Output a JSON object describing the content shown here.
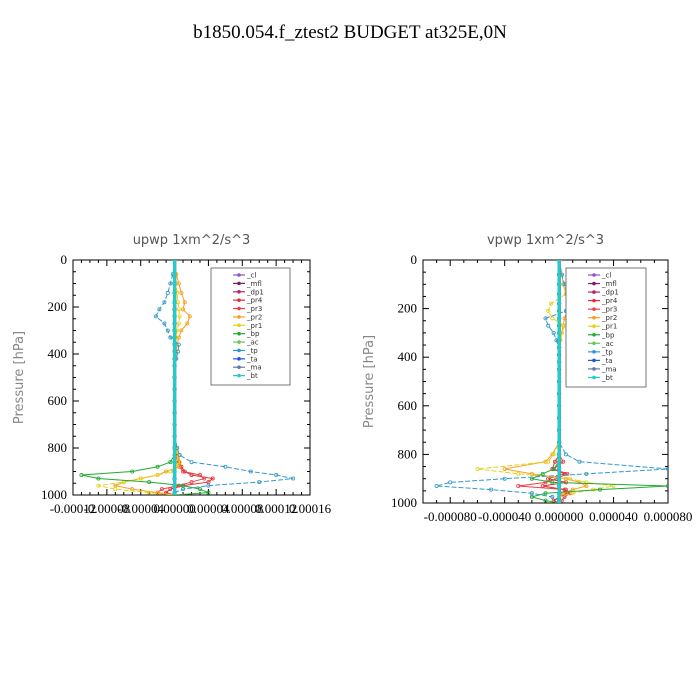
{
  "title": "b1850.054.f_ztest2  BUDGET at325E,0N",
  "chart_data": [
    {
      "type": "line",
      "title": "upwp   1xm^2/s^3",
      "xlabel": "",
      "ylabel": "Pressure [hPa]",
      "xlim": [
        -0.00012,
        0.00016
      ],
      "ylim": [
        1000,
        0
      ],
      "x_tick_labels": [
        "-0.00012",
        "-0.00008",
        "-0.00004",
        "0.00000",
        "0.00004",
        "0.00008",
        "0.00012",
        "0.00016"
      ],
      "y_tick_labels": [
        "0",
        "200",
        "400",
        "600",
        "800",
        "1000"
      ],
      "legend_position": "top-right",
      "pressure": [
        0,
        60,
        100,
        140,
        180,
        210,
        240,
        270,
        300,
        330,
        360,
        390,
        420,
        450,
        500,
        550,
        600,
        650,
        700,
        750,
        800,
        830,
        860,
        880,
        900,
        915,
        930,
        945,
        960,
        975,
        990,
        1000
      ],
      "series": [
        {
          "name": "_cl",
          "color": "#8855cc",
          "values": [
            0,
            0,
            0,
            0,
            0,
            0,
            0,
            0,
            0,
            0,
            0,
            0,
            0,
            0,
            0,
            0,
            0,
            0,
            0,
            0,
            0,
            0,
            0,
            0,
            0,
            0,
            0,
            0,
            0,
            0,
            0,
            0
          ]
        },
        {
          "name": "_mfl",
          "color": "#7a1d6b",
          "values": [
            0,
            0,
            0,
            0,
            0,
            0,
            0,
            0,
            0,
            0,
            0,
            0,
            0,
            0,
            0,
            0,
            0,
            0,
            0,
            0,
            0,
            0,
            0,
            0,
            0,
            0,
            0,
            0,
            0,
            0,
            0,
            0
          ]
        },
        {
          "name": "_dp1",
          "color": "#b02a6a",
          "values": [
            0,
            0,
            0,
            0,
            0,
            0,
            0,
            0,
            0,
            0,
            0,
            0,
            0,
            0,
            0,
            0,
            0,
            0,
            0,
            0,
            0,
            0,
            0,
            0,
            0,
            0,
            0,
            0,
            0,
            0,
            0,
            0
          ]
        },
        {
          "name": "_pr4",
          "color": "#e03030",
          "values": [
            0,
            0,
            0,
            0,
            0,
            0,
            0,
            0,
            0,
            0,
            0,
            0,
            0,
            0,
            0,
            0,
            0,
            0,
            0,
            0,
            0,
            3e-06,
            5e-06,
            8e-06,
            1.2e-05,
            2e-05,
            4.5e-05,
            4e-05,
            1e-05,
            -5e-06,
            -1e-05,
            0
          ]
        },
        {
          "name": "_pr3",
          "color": "#e8404a",
          "values": [
            0,
            0,
            0,
            0,
            0,
            0,
            0,
            0,
            0,
            0,
            0,
            0,
            0,
            0,
            0,
            0,
            0,
            0,
            0,
            0,
            0,
            2e-06,
            4e-06,
            6e-06,
            1e-05,
            3e-05,
            3.5e-05,
            2e-05,
            5e-06,
            -1.5e-05,
            -2e-05,
            0
          ]
        },
        {
          "name": "_pr2",
          "color": "#f5a020",
          "values": [
            0,
            2e-06,
            5e-06,
            8e-06,
            1.2e-05,
            1e-05,
            1.8e-05,
            1.5e-05,
            8e-06,
            5e-06,
            3e-06,
            2e-06,
            1e-06,
            0,
            0,
            0,
            0,
            0,
            0,
            0,
            3e-06,
            5e-06,
            6e-06,
            5e-06,
            -1e-05,
            -2e-05,
            -4e-05,
            -6e-05,
            -7e-05,
            -5e-05,
            -2e-05,
            0
          ]
        },
        {
          "name": "_pr1",
          "color": "#e6d21a",
          "values": [
            0,
            1e-06,
            2e-06,
            3e-06,
            4e-06,
            5e-06,
            6e-06,
            5e-06,
            3e-06,
            2e-06,
            1e-06,
            0,
            0,
            0,
            0,
            0,
            0,
            0,
            0,
            0,
            2e-06,
            3e-06,
            4e-06,
            3e-06,
            -5e-06,
            -2e-05,
            -4e-05,
            -6e-05,
            -9e-05,
            -7e-05,
            -3e-05,
            0
          ]
        },
        {
          "name": "_bp",
          "color": "#22aa33",
          "values": [
            0,
            0,
            0,
            0,
            0,
            0,
            0,
            0,
            0,
            0,
            0,
            0,
            0,
            0,
            0,
            0,
            0,
            0,
            0,
            0,
            0,
            0,
            -5e-06,
            -2e-05,
            -5e-05,
            -0.00011,
            -9e-05,
            -3e-05,
            1e-05,
            3e-05,
            4e-05,
            0
          ]
        },
        {
          "name": "_ac",
          "color": "#66cc55",
          "values": [
            0,
            0,
            0,
            0,
            0,
            0,
            0,
            0,
            0,
            0,
            0,
            0,
            0,
            0,
            0,
            0,
            0,
            0,
            0,
            0,
            0,
            0,
            0,
            0,
            0,
            0,
            0,
            0,
            0,
            0,
            0,
            0
          ]
        },
        {
          "name": "_tp",
          "color": "#3399cc",
          "values": [
            0,
            -2e-06,
            -5e-06,
            -8e-06,
            -1.2e-05,
            -1.8e-05,
            -2.2e-05,
            -1.2e-05,
            -8e-06,
            -5e-06,
            5e-06,
            4e-06,
            2e-06,
            0,
            0,
            0,
            0,
            0,
            0,
            0,
            3e-06,
            6e-06,
            2e-05,
            6e-05,
            9e-05,
            0.00012,
            0.00014,
            0.0001,
            4e-05,
            1e-05,
            0,
            0
          ]
        },
        {
          "name": "_ta",
          "color": "#2255dd",
          "values": [
            0,
            0,
            0,
            0,
            0,
            0,
            0,
            0,
            0,
            0,
            0,
            0,
            0,
            0,
            0,
            0,
            0,
            0,
            0,
            0,
            0,
            0,
            0,
            0,
            0,
            0,
            0,
            0,
            0,
            0,
            0,
            0
          ]
        },
        {
          "name": "_ma",
          "color": "#6677aa",
          "values": [
            0,
            0,
            0,
            0,
            0,
            0,
            0,
            0,
            0,
            0,
            0,
            0,
            0,
            0,
            0,
            0,
            0,
            0,
            0,
            0,
            0,
            0,
            0,
            0,
            0,
            0,
            0,
            0,
            0,
            0,
            0,
            0
          ]
        },
        {
          "name": "_bt",
          "color": "#22cccc",
          "values": [
            0,
            0,
            0,
            0,
            0,
            0,
            0,
            0,
            0,
            0,
            0,
            0,
            0,
            0,
            0,
            0,
            0,
            0,
            0,
            0,
            0,
            0,
            0,
            0,
            0,
            0,
            0,
            0,
            0,
            0,
            0,
            0
          ]
        }
      ]
    },
    {
      "type": "line",
      "title": "vpwp   1xm^2/s^3",
      "xlabel": "",
      "ylabel": "Pressure [hPa]",
      "xlim": [
        -0.0001,
        8e-05
      ],
      "ylim": [
        1000,
        0
      ],
      "x_tick_labels": [
        "-0.000080",
        "-0.000040",
        "0.000000",
        "0.000040",
        "0.000080"
      ],
      "y_tick_labels": [
        "0",
        "200",
        "400",
        "600",
        "800",
        "1000"
      ],
      "legend_position": "top-right",
      "pressure": [
        0,
        60,
        100,
        140,
        180,
        210,
        240,
        270,
        300,
        330,
        360,
        390,
        420,
        450,
        500,
        550,
        600,
        650,
        700,
        750,
        800,
        830,
        860,
        880,
        900,
        915,
        930,
        945,
        960,
        975,
        990,
        1000
      ],
      "series": [
        {
          "name": "_cl",
          "color": "#8855cc",
          "values": [
            0,
            0,
            0,
            0,
            0,
            0,
            0,
            0,
            0,
            0,
            0,
            0,
            0,
            0,
            0,
            0,
            0,
            0,
            0,
            0,
            0,
            0,
            0,
            0,
            0,
            0,
            0,
            0,
            0,
            0,
            0,
            0
          ]
        },
        {
          "name": "_mfl",
          "color": "#7a1d6b",
          "values": [
            0,
            0,
            0,
            0,
            0,
            0,
            0,
            0,
            0,
            0,
            0,
            0,
            0,
            0,
            0,
            0,
            0,
            0,
            0,
            0,
            0,
            0,
            0,
            0,
            0,
            0,
            0,
            0,
            0,
            0,
            0,
            0
          ]
        },
        {
          "name": "_dp1",
          "color": "#b02a6a",
          "values": [
            0,
            0,
            0,
            0,
            0,
            0,
            0,
            0,
            0,
            0,
            0,
            0,
            0,
            0,
            0,
            0,
            0,
            0,
            0,
            0,
            0,
            0,
            0,
            0,
            0,
            0,
            0,
            0,
            0,
            0,
            0,
            0
          ]
        },
        {
          "name": "_pr4",
          "color": "#e03030",
          "values": [
            0,
            0,
            0,
            0,
            0,
            0,
            0,
            0,
            0,
            0,
            0,
            0,
            0,
            0,
            0,
            0,
            0,
            0,
            0,
            0,
            0,
            -3e-06,
            -5e-06,
            4e-06,
            -8e-06,
            5e-06,
            -1.2e-05,
            4e-06,
            6e-06,
            0,
            -4e-06,
            0
          ]
        },
        {
          "name": "_pr3",
          "color": "#e8404a",
          "values": [
            0,
            0,
            0,
            0,
            0,
            0,
            0,
            0,
            0,
            0,
            0,
            0,
            0,
            0,
            0,
            0,
            0,
            0,
            0,
            0,
            0,
            3e-06,
            -4e-06,
            6e-06,
            -2e-06,
            -1e-05,
            -3e-05,
            5e-06,
            8e-06,
            4e-06,
            2e-06,
            0
          ]
        },
        {
          "name": "_pr2",
          "color": "#f5a020",
          "values": [
            0,
            2e-06,
            3e-06,
            5e-06,
            8e-06,
            6e-06,
            4e-06,
            3e-06,
            2e-06,
            1e-06,
            0,
            0,
            0,
            0,
            0,
            0,
            0,
            0,
            0,
            0,
            -5e-06,
            -1e-05,
            -4e-05,
            -2e-05,
            5e-06,
            1.5e-05,
            2e-05,
            1e-05,
            3e-06,
            0,
            0,
            0
          ]
        },
        {
          "name": "_pr1",
          "color": "#e6d21a",
          "values": [
            0,
            2e-06,
            3e-06,
            5e-06,
            -6e-06,
            -8e-06,
            -5e-06,
            4e-06,
            2e-06,
            1e-06,
            0,
            0,
            0,
            0,
            0,
            0,
            0,
            0,
            0,
            0,
            -4e-06,
            -8e-06,
            -6e-05,
            -3e-05,
            8e-06,
            2e-05,
            4e-05,
            2.5e-05,
            1e-05,
            0,
            0,
            0
          ]
        },
        {
          "name": "_bp",
          "color": "#22aa33",
          "values": [
            0,
            0,
            0,
            0,
            0,
            0,
            0,
            0,
            0,
            0,
            0,
            0,
            0,
            0,
            0,
            0,
            0,
            0,
            0,
            0,
            0,
            0,
            -4e-06,
            -1.2e-05,
            -2e-05,
            -5e-06,
            8e-05,
            3e-05,
            -1e-05,
            -2e-05,
            -1e-05,
            0
          ]
        },
        {
          "name": "_ac",
          "color": "#66cc55",
          "values": [
            0,
            0,
            0,
            0,
            0,
            0,
            0,
            0,
            0,
            0,
            0,
            0,
            0,
            0,
            0,
            0,
            0,
            0,
            0,
            0,
            0,
            0,
            0,
            0,
            0,
            0,
            0,
            0,
            0,
            0,
            0,
            0
          ]
        },
        {
          "name": "_tp",
          "color": "#3399cc",
          "values": [
            0,
            2e-06,
            4e-06,
            6e-06,
            1.2e-05,
            5e-06,
            -1e-05,
            -8e-06,
            -4e-06,
            -2e-06,
            0,
            0,
            0,
            0,
            0,
            0,
            0,
            0,
            0,
            0,
            5e-06,
            1.5e-05,
            8e-05,
            2e-05,
            -4e-05,
            -8e-05,
            -9e-05,
            -5e-05,
            -2e-05,
            -5e-06,
            0,
            0
          ]
        },
        {
          "name": "_ta",
          "color": "#2255dd",
          "values": [
            0,
            0,
            0,
            0,
            0,
            0,
            0,
            0,
            0,
            0,
            0,
            0,
            0,
            0,
            0,
            0,
            0,
            0,
            0,
            0,
            0,
            0,
            0,
            0,
            0,
            0,
            0,
            0,
            0,
            0,
            0,
            0
          ]
        },
        {
          "name": "_ma",
          "color": "#6677aa",
          "values": [
            0,
            0,
            0,
            0,
            0,
            0,
            0,
            0,
            0,
            0,
            0,
            0,
            0,
            0,
            0,
            0,
            0,
            0,
            0,
            0,
            0,
            0,
            0,
            0,
            0,
            0,
            0,
            0,
            0,
            0,
            0,
            0
          ]
        },
        {
          "name": "_bt",
          "color": "#22cccc",
          "values": [
            0,
            0,
            0,
            0,
            0,
            0,
            0,
            0,
            0,
            0,
            0,
            0,
            0,
            0,
            0,
            0,
            0,
            0,
            0,
            0,
            0,
            0,
            0,
            0,
            0,
            0,
            0,
            0,
            0,
            0,
            0,
            0
          ]
        }
      ]
    }
  ]
}
